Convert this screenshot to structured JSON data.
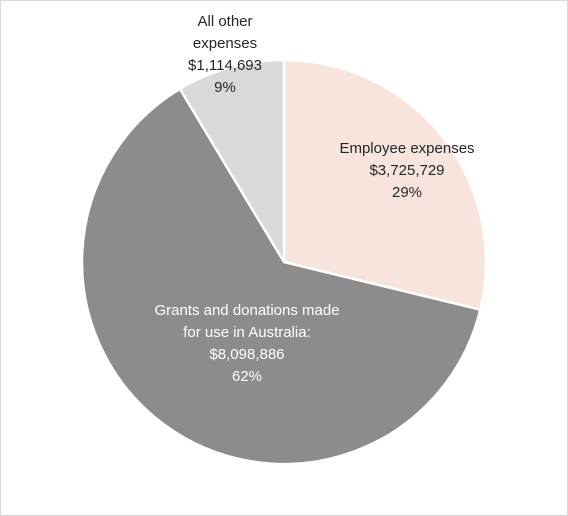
{
  "chart_data": {
    "type": "pie",
    "slices": [
      {
        "label_lines": [
          "Employee expenses"
        ],
        "amount": "$3,725,729",
        "percent": "29%",
        "value": 3725729,
        "color": "#f6e4dd",
        "text_color": "#262626"
      },
      {
        "label_lines": [
          "Grants and donations made",
          "for use in Australia:"
        ],
        "amount": "$8,098,886",
        "percent": "62%",
        "value": 8098886,
        "color": "#8c8c8c",
        "text_color": "#ffffff"
      },
      {
        "label_lines": [
          "All other",
          "expenses"
        ],
        "amount": "$1,114,693",
        "percent": "9%",
        "value": 1114693,
        "color": "#d9d9d9",
        "text_color": "#262626"
      }
    ],
    "start_angle": "12 o'clock",
    "direction": "clockwise",
    "legend": "none",
    "border_color": "#ffffff"
  }
}
